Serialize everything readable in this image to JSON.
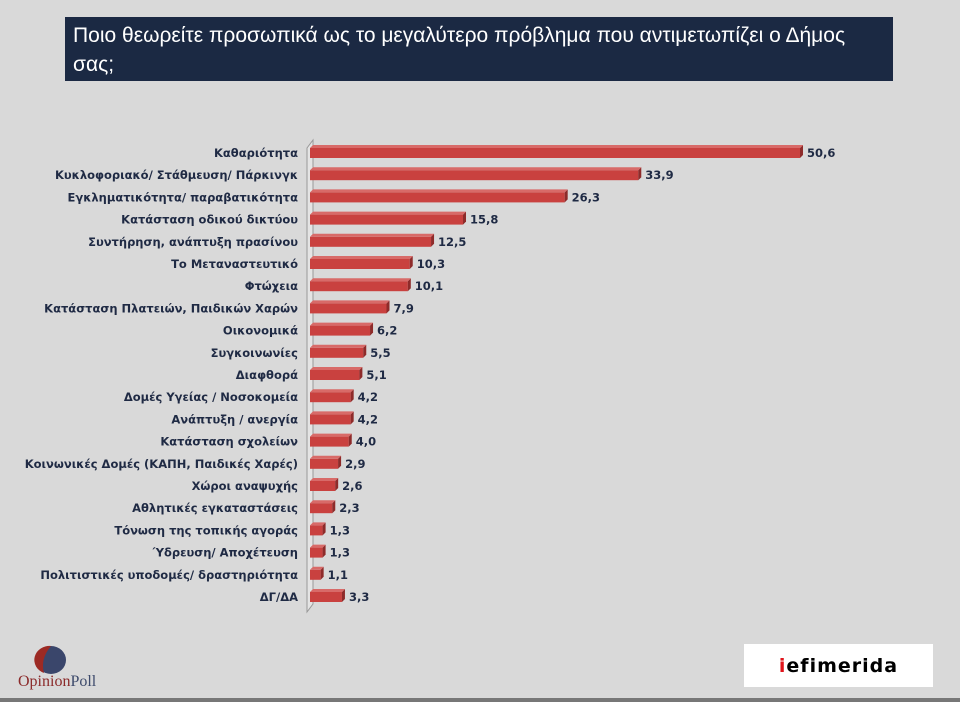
{
  "title": "Ποιο θεωρείτε προσωπικά ως το μεγαλύτερο πρόβλημα που αντιμετωπίζει ο Δήμος σας;",
  "chart_data": {
    "type": "bar",
    "orientation": "horizontal",
    "title": "Ποιο θεωρείτε προσωπικά ως το μεγαλύτερο πρόβλημα που αντιμετωπίζει ο Δήμος σας;",
    "categories": [
      "Καθαριότητα",
      "Κυκλοφοριακό/ Στάθμευση/ Πάρκινγκ",
      "Εγκληματικότητα/ παραβατικότητα",
      "Κατάσταση οδικού δικτύου",
      "Συντήρηση, ανάπτυξη πρασίνου",
      "Το Μεταναστευτικό",
      "Φτώχεια",
      "Κατάσταση Πλατειών, Παιδικών Χαρών",
      "Οικονομικά",
      "Συγκοινωνίες",
      "Διαφθορά",
      "Δομές Υγείας / Νοσοκομεία",
      "Ανάπτυξη / ανεργία",
      "Κατάσταση σχολείων",
      "Κοινωνικές Δομές (ΚΑΠΗ, Παιδικές Χαρές)",
      "Χώροι αναψυχής",
      "Αθλητικές εγκαταστάσεις",
      "Τόνωση της τοπικής αγοράς",
      "Ύδρευση/ Αποχέτευση",
      "Πολιτιστικές υποδομές/ δραστηριότητα",
      "ΔΓ/ΔΑ"
    ],
    "values": [
      50.6,
      33.9,
      26.3,
      15.8,
      12.5,
      10.3,
      10.1,
      7.9,
      6.2,
      5.5,
      5.1,
      4.2,
      4.2,
      4.0,
      2.9,
      2.6,
      2.3,
      1.3,
      1.3,
      1.1,
      3.3
    ],
    "labels": [
      "50,6",
      "33,9",
      "26,3",
      "15,8",
      "12,5",
      "10,3",
      "10,1",
      "7,9",
      "6,2",
      "5,5",
      "5,1",
      "4,2",
      "4,2",
      "4,0",
      "2,9",
      "2,6",
      "2,3",
      "1,3",
      "1,3",
      "1,1",
      "3,3"
    ],
    "xlim": [
      0,
      55
    ],
    "bar_color": "#c9413f",
    "grid": false
  },
  "logos": {
    "opinion_a": "Opinion",
    "opinion_b": "Poll",
    "iefimerida_i": "i",
    "iefimerida_rest": "efimerida"
  }
}
